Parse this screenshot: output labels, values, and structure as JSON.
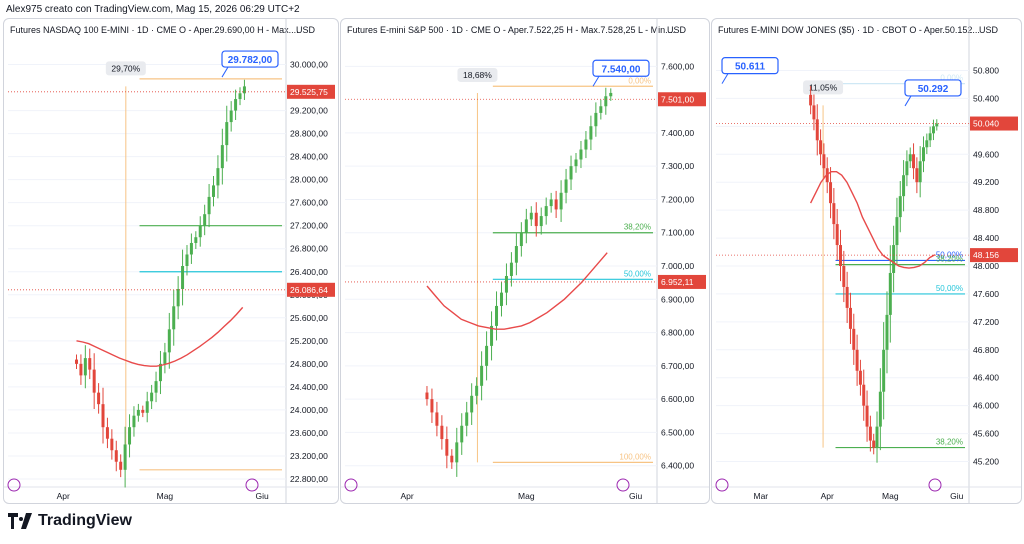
{
  "header": {
    "caption": "Alex975 creato con TradingView.com, Mag 15, 2026 06:29 UTC+2"
  },
  "footer": {
    "brand": "TradingView"
  },
  "colors": {
    "up": "#4caf50",
    "down": "#e2463b",
    "ma": "#e84a4a",
    "grid": "#f0f3fa",
    "text": "#131722",
    "fib_top": "#f7c485",
    "fib_382": "#4caf50",
    "fib_50": "#26c6da",
    "callout": "#2962ff"
  },
  "chart_data": [
    {
      "type": "candlestick",
      "title": "Futures NASDAQ 100 E-MINI · 1D · CME",
      "ohlc_text": "O - Aper.29.690,00 H - Max....",
      "currency": "USD",
      "ylim": [
        22800,
        30200
      ],
      "y_ticks": [
        22800,
        23200,
        23600,
        24000,
        24400,
        24800,
        25200,
        25600,
        26000,
        26400,
        26800,
        27200,
        27600,
        28000,
        28400,
        28800,
        29200,
        30000
      ],
      "y_tick_labels": [
        "22.800,00",
        "23.200,00",
        "23.600,00",
        "24.000,00",
        "24.400,00",
        "24.800,00",
        "25.200,00",
        "25.600,00",
        "26.000,00",
        "26.400,00",
        "26.800,00",
        "27.200,00",
        "27.600,00",
        "28.000,00",
        "28.400,00",
        "28.800,00",
        "29.200,00",
        "30.000,00"
      ],
      "x_labels": [
        {
          "label": "Apr",
          "i": 12
        },
        {
          "label": "Mag",
          "i": 35
        },
        {
          "label": "Giu",
          "i": 57
        }
      ],
      "n_slots": 62,
      "close": [
        24800,
        24600,
        24900,
        24700,
        24300,
        24100,
        23700,
        23500,
        23300,
        23100,
        22960,
        23400,
        23700,
        23900,
        24000,
        23950,
        24150,
        24300,
        24500,
        24800,
        25000,
        25400,
        25800,
        26100,
        26500,
        26700,
        26900,
        27000,
        27200,
        27400,
        27700,
        27900,
        28200,
        28600,
        29000,
        29200,
        29400,
        29500,
        29620
      ],
      "ma": [
        25200,
        25180,
        25150,
        25100,
        25050,
        25000,
        24950,
        24900,
        24860,
        24820,
        24790,
        24770,
        24760,
        24760,
        24780,
        24810,
        24850,
        24900,
        24960,
        25030,
        25100,
        25180,
        25260,
        25350,
        25450,
        25550,
        25660,
        25780
      ],
      "ma_start": 0,
      "fibs": [
        {
          "label": "",
          "value": 29750,
          "color": "#f7c485"
        },
        {
          "label": "",
          "value": 27200,
          "color": "#4caf50"
        },
        {
          "label": "",
          "value": 26400,
          "color": "#26c6da"
        },
        {
          "label": "",
          "value": 22960,
          "color": "#f7c485"
        }
      ],
      "measure_label": "29,70%",
      "callout_label": "29.782,00",
      "callout_value": 29782,
      "price_tags": [
        {
          "label": "29.525,75",
          "value": 29525.75,
          "color": "#e2463b"
        },
        {
          "label": "26.086,64",
          "value": 26086.64,
          "color": "#e2463b"
        }
      ]
    },
    {
      "type": "candlestick",
      "title": "Futures E-mini S&P 500 · 1D · CME",
      "ohlc_text": "O - Aper.7.522,25 H - Max.7.528,25 L - Min....",
      "currency": "USD",
      "ylim": [
        6360,
        7640
      ],
      "y_ticks": [
        6400,
        6500,
        6600,
        6700,
        6800,
        6900,
        7000,
        7100,
        7200,
        7300,
        7400,
        7600
      ],
      "y_tick_labels": [
        "6.400,00",
        "6.500,00",
        "6.600,00",
        "6.700,00",
        "6.800,00",
        "6.900,00",
        "7.000,00",
        "7.100,00",
        "7.200,00",
        "7.300,00",
        "7.400,00",
        "7.600,00"
      ],
      "x_labels": [
        {
          "label": "Apr",
          "i": 12
        },
        {
          "label": "Mag",
          "i": 36
        },
        {
          "label": "Giu",
          "i": 58
        }
      ],
      "n_slots": 62,
      "close": [
        6600,
        6560,
        6520,
        6480,
        6430,
        6410,
        6470,
        6520,
        6560,
        6610,
        6640,
        6700,
        6760,
        6820,
        6880,
        6920,
        6970,
        7010,
        7060,
        7100,
        7140,
        7160,
        7120,
        7150,
        7180,
        7200,
        7170,
        7220,
        7260,
        7300,
        7320,
        7350,
        7380,
        7420,
        7460,
        7480,
        7510,
        7520
      ],
      "ma": [
        6940,
        6910,
        6880,
        6860,
        6840,
        6830,
        6820,
        6815,
        6810,
        6810,
        6815,
        6820,
        6830,
        6845,
        6860,
        6880,
        6900,
        6925,
        6950,
        6980,
        7010,
        7040
      ],
      "ma_start": 0,
      "fibs": [
        {
          "label": "0,00%",
          "value": 7540,
          "color": "#f7c485"
        },
        {
          "label": "38,20%",
          "value": 7100,
          "color": "#4caf50"
        },
        {
          "label": "50,00%",
          "value": 6960,
          "color": "#26c6da"
        },
        {
          "label": "100,00%",
          "value": 6410,
          "color": "#f7c485"
        }
      ],
      "measure_label": "18,68%",
      "callout_label": "7.540,00",
      "callout_value": 7540,
      "price_tags": [
        {
          "label": "7.501,00",
          "value": 7501,
          "color": "#e2463b"
        },
        {
          "label": "6.952,11",
          "value": 6952.11,
          "color": "#e2463b"
        }
      ]
    },
    {
      "type": "candlestick",
      "title": "Futures E-MINI DOW JONES ($5) · 1D · CBOT",
      "ohlc_text": "O - Aper.50.152...",
      "currency": "USD",
      "ylim": [
        44950,
        51050
      ],
      "y_ticks": [
        45200,
        45600,
        46000,
        46400,
        46800,
        47200,
        47600,
        48000,
        48400,
        48800,
        49200,
        49600,
        50000,
        50400,
        50800
      ],
      "y_tick_labels": [
        "45.200",
        "45.600",
        "46.000",
        "46.400",
        "46.800",
        "47.200",
        "47.600",
        "48.000",
        "48.400",
        "48.800",
        "49.200",
        "49.600",
        "50.000",
        "50.400",
        "50.800"
      ],
      "x_labels": [
        {
          "label": "Mar",
          "i": 13
        },
        {
          "label": "Apr",
          "i": 33
        },
        {
          "label": "Mag",
          "i": 52
        },
        {
          "label": "Giu",
          "i": 72
        }
      ],
      "n_slots": 75,
      "close": [
        50300,
        50100,
        49800,
        49600,
        49400,
        49200,
        48900,
        48600,
        48300,
        48000,
        47700,
        47400,
        47100,
        46800,
        46500,
        46300,
        46000,
        45700,
        45500,
        45400,
        45700,
        46200,
        46800,
        47300,
        47900,
        48300,
        48700,
        49000,
        49300,
        49500,
        49600,
        49400,
        49200,
        49500,
        49700,
        49800,
        49900,
        50000,
        50040
      ],
      "ma": [
        48900,
        49050,
        49200,
        49300,
        49350,
        49350,
        49300,
        49200,
        49050,
        48900,
        48700,
        48550,
        48400,
        48250,
        48150,
        48100,
        48050,
        48000,
        47980,
        47970,
        47980,
        48000,
        48050,
        48120,
        48160
      ],
      "ma_start": 0,
      "fibs": [
        {
          "label": "0,00%",
          "value": 50611,
          "color": "#cfe8f5"
        },
        {
          "label": "50,00%",
          "value": 48080,
          "color": "#2962ff"
        },
        {
          "label": "38,20%",
          "value": 48020,
          "color": "#4caf50"
        },
        {
          "label": "50,00%",
          "value": 47600,
          "color": "#26c6da"
        },
        {
          "label": "38,20%",
          "value": 45400,
          "color": "#4caf50"
        }
      ],
      "measure_label": "11,05%",
      "callout_label": "50.292",
      "callout_value": 50292,
      "callout2_label": "50.611",
      "callout2_value": 50611,
      "price_tags": [
        {
          "label": "50.040",
          "value": 50040,
          "color": "#e2463b"
        },
        {
          "label": "48.156",
          "value": 48156,
          "color": "#e2463b"
        }
      ]
    }
  ]
}
